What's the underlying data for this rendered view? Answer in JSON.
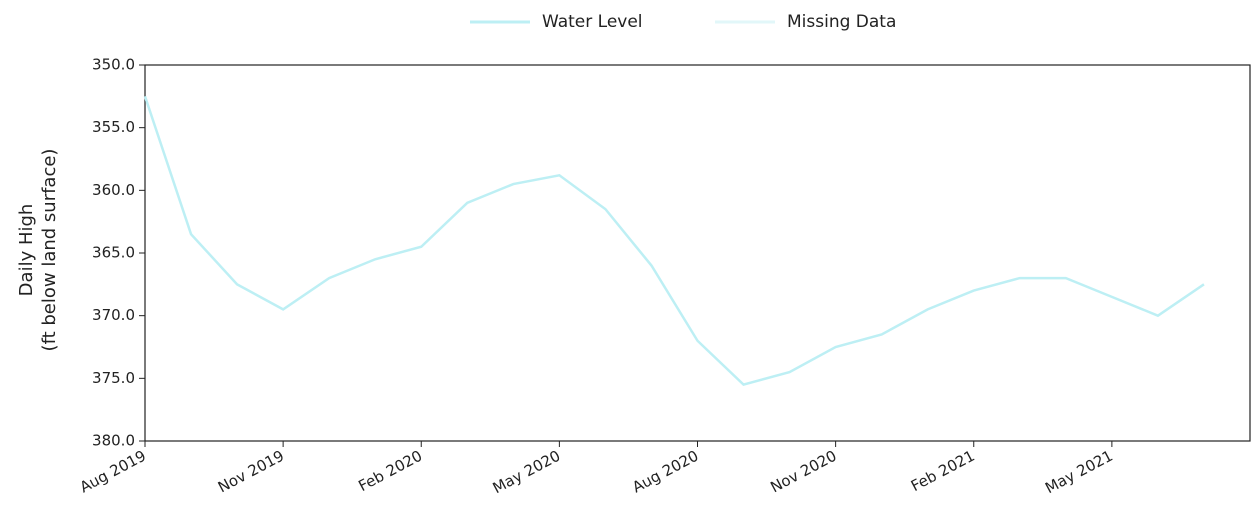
{
  "chart_data": {
    "type": "line",
    "y_label": [
      "Daily High",
      "(ft below land surface)"
    ],
    "x": [
      "2019-08",
      "2019-09",
      "2019-10",
      "2019-11",
      "2019-12",
      "2020-01",
      "2020-02",
      "2020-03",
      "2020-04",
      "2020-05",
      "2020-06",
      "2020-07",
      "2020-08",
      "2020-09",
      "2020-10",
      "2020-11",
      "2020-12",
      "2021-01",
      "2021-02",
      "2021-03",
      "2021-04",
      "2021-05",
      "2021-06",
      "2021-07"
    ],
    "series": [
      {
        "name": "Water Level",
        "color": "#bdeff4",
        "values": [
          352.5,
          363.5,
          367.5,
          369.5,
          367,
          365.5,
          364.5,
          361,
          359.5,
          358.8,
          361.5,
          366,
          372,
          375.5,
          374.5,
          372.5,
          371.5,
          369.5,
          368,
          367,
          367,
          368.5,
          370,
          367.5
        ]
      },
      {
        "name": "Missing Data",
        "color": "#e2f7f9",
        "values": [
          null,
          null,
          null,
          null,
          null,
          null,
          null,
          null,
          null,
          null,
          null,
          null,
          null,
          null,
          null,
          null,
          null,
          null,
          null,
          null,
          null,
          null,
          null,
          null
        ]
      }
    ],
    "xlim": [
      "2019-08",
      "2021-08"
    ],
    "xticks": [
      {
        "value": "2019-08",
        "label": "Aug 2019"
      },
      {
        "value": "2019-11",
        "label": "Nov 2019"
      },
      {
        "value": "2020-02",
        "label": "Feb 2020"
      },
      {
        "value": "2020-05",
        "label": "May 2020"
      },
      {
        "value": "2020-08",
        "label": "Aug 2020"
      },
      {
        "value": "2020-11",
        "label": "Nov 2020"
      },
      {
        "value": "2021-02",
        "label": "Feb 2021"
      },
      {
        "value": "2021-05",
        "label": "May 2021"
      }
    ],
    "ylim": [
      350,
      380
    ],
    "y_inverted": true,
    "yticks": [
      {
        "value": 350,
        "label": "350.0"
      },
      {
        "value": 355,
        "label": "355.0"
      },
      {
        "value": 360,
        "label": "360.0"
      },
      {
        "value": 365,
        "label": "365.0"
      },
      {
        "value": 370,
        "label": "370.0"
      },
      {
        "value": 375,
        "label": "375.0"
      },
      {
        "value": 380,
        "label": "380.0"
      }
    ],
    "legend": "top"
  }
}
